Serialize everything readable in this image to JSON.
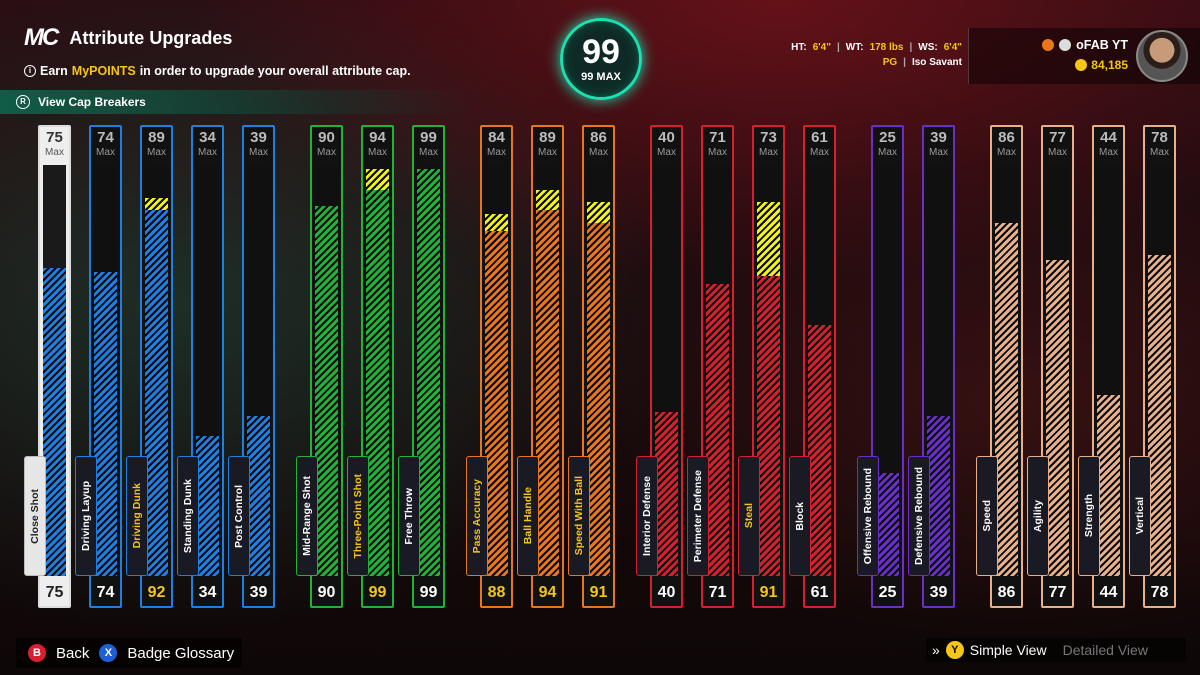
{
  "header": {
    "logo": "MC",
    "title": "Attribute Upgrades",
    "subtitle_pre": "Earn",
    "subtitle_highlight": "MyPOINTS",
    "subtitle_post": "in order to upgrade your overall attribute cap.",
    "cap_breakers_label": "View Cap Breakers"
  },
  "overall": {
    "value": "99",
    "max_label": "99 MAX"
  },
  "player_info": {
    "ht_label": "HT:",
    "ht_value": "6'4\"",
    "wt_label": "WT:",
    "wt_value": "178 lbs",
    "ws_label": "WS:",
    "ws_value": "6'4\"",
    "position": "PG",
    "archetype": "Iso Savant",
    "name": "oFAB YT",
    "vc": "84,185"
  },
  "max_label": "Max",
  "colors": {
    "blue": "#1e7fe0",
    "green": "#1fb33a",
    "orange": "#e8761c",
    "red": "#d62030",
    "purple": "#6a2fc9",
    "tan": "#e7b08a",
    "yellow": "#f2f21a",
    "teal": "#1de0b0"
  },
  "attributes": [
    {
      "name": "Close Shot",
      "current": "75",
      "max": "75",
      "base": 75,
      "upgraded": 75,
      "color": "white"
    },
    {
      "name": "Driving Layup",
      "current": "74",
      "max": "74",
      "base": 74,
      "upgraded": 74,
      "color": "blue"
    },
    {
      "name": "Driving Dunk",
      "current": "92",
      "max": "89",
      "base": 89,
      "upgraded": 92,
      "color": "blue",
      "boost": true
    },
    {
      "name": "Standing Dunk",
      "current": "34",
      "max": "34",
      "base": 34,
      "upgraded": 34,
      "color": "blue"
    },
    {
      "name": "Post Control",
      "current": "39",
      "max": "39",
      "base": 39,
      "upgraded": 39,
      "color": "blue"
    },
    {
      "name": "Mid-Range Shot",
      "current": "90",
      "max": "90",
      "base": 90,
      "upgraded": 90,
      "color": "green"
    },
    {
      "name": "Three-Point Shot",
      "current": "99",
      "max": "94",
      "base": 94,
      "upgraded": 99,
      "color": "green",
      "boost": true
    },
    {
      "name": "Free Throw",
      "current": "99",
      "max": "99",
      "base": 99,
      "upgraded": 99,
      "color": "green"
    },
    {
      "name": "Pass Accuracy",
      "current": "88",
      "max": "84",
      "base": 84,
      "upgraded": 88,
      "color": "orange",
      "boost": true
    },
    {
      "name": "Ball Handle",
      "current": "94",
      "max": "89",
      "base": 89,
      "upgraded": 94,
      "color": "orange",
      "boost": true
    },
    {
      "name": "Speed With Ball",
      "current": "91",
      "max": "86",
      "base": 86,
      "upgraded": 91,
      "color": "orange",
      "boost": true
    },
    {
      "name": "Interior Defense",
      "current": "40",
      "max": "40",
      "base": 40,
      "upgraded": 40,
      "color": "red"
    },
    {
      "name": "Perimeter Defense",
      "current": "71",
      "max": "71",
      "base": 71,
      "upgraded": 71,
      "color": "red"
    },
    {
      "name": "Steal",
      "current": "91",
      "max": "73",
      "base": 73,
      "upgraded": 91,
      "color": "red",
      "boost": true
    },
    {
      "name": "Block",
      "current": "61",
      "max": "61",
      "base": 61,
      "upgraded": 61,
      "color": "red"
    },
    {
      "name": "Offensive Rebound",
      "current": "25",
      "max": "25",
      "base": 25,
      "upgraded": 25,
      "color": "purple"
    },
    {
      "name": "Defensive Rebound",
      "current": "39",
      "max": "39",
      "base": 39,
      "upgraded": 39,
      "color": "purple"
    },
    {
      "name": "Speed",
      "current": "86",
      "max": "86",
      "base": 86,
      "upgraded": 86,
      "color": "tan"
    },
    {
      "name": "Agility",
      "current": "77",
      "max": "77",
      "base": 77,
      "upgraded": 77,
      "color": "tan"
    },
    {
      "name": "Strength",
      "current": "44",
      "max": "44",
      "base": 44,
      "upgraded": 44,
      "color": "tan"
    },
    {
      "name": "Vertical",
      "current": "78",
      "max": "78",
      "base": 78,
      "upgraded": 78,
      "color": "tan"
    }
  ],
  "footer": {
    "back_button": "B",
    "back_label": "Back",
    "glossary_button": "X",
    "glossary_label": "Badge Glossary",
    "view_button": "Y",
    "simple_view": "Simple View",
    "detailed_view": "Detailed View"
  }
}
